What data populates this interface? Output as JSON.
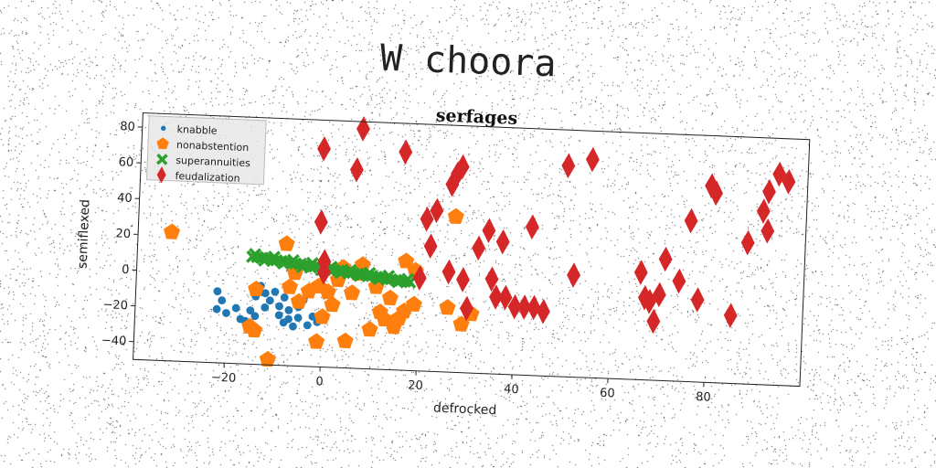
{
  "page": {
    "title": "W choora"
  },
  "chart_data": {
    "type": "scatter",
    "title": "serfages",
    "xlabel": "defrocked",
    "ylabel": "semiflexed",
    "xlim": [
      -39,
      100
    ],
    "ylim": [
      -50,
      88
    ],
    "xticks": [
      -20,
      0,
      20,
      40,
      60,
      80
    ],
    "yticks": [
      -40,
      -20,
      0,
      20,
      40,
      60,
      80
    ],
    "grid": false,
    "legend": "top-left",
    "series": [
      {
        "name": "knabble",
        "color": "#1f77b4",
        "marker": "circle",
        "points": [
          [
            -22,
            -10
          ],
          [
            -21,
            -15
          ],
          [
            -22,
            -20
          ],
          [
            -20,
            -22
          ],
          [
            -18,
            -19
          ],
          [
            -17,
            -25
          ],
          [
            -16,
            -26
          ],
          [
            -15,
            -20
          ],
          [
            -14,
            -12
          ],
          [
            -13,
            -6
          ],
          [
            -12,
            -10
          ],
          [
            -11,
            -14
          ],
          [
            -10,
            -9
          ],
          [
            -9,
            -17
          ],
          [
            -9,
            -22
          ],
          [
            -8,
            -12
          ],
          [
            -8,
            -26
          ],
          [
            -7,
            -19
          ],
          [
            -7,
            -24
          ],
          [
            -6,
            -28
          ],
          [
            -5,
            -23
          ],
          [
            -5,
            -17
          ],
          [
            -4,
            -13
          ],
          [
            -3,
            -27
          ],
          [
            -2,
            -22
          ],
          [
            -1,
            -25
          ],
          [
            -12,
            -18
          ],
          [
            -14,
            -23
          ]
        ]
      },
      {
        "name": "nonabstention",
        "color": "#ff7f0e",
        "marker": "pentagon",
        "points": [
          [
            -32,
            22
          ],
          [
            -14,
            -31
          ],
          [
            -15,
            -29
          ],
          [
            -14,
            -8
          ],
          [
            -11,
            -47
          ],
          [
            -8,
            18
          ],
          [
            -7,
            -6
          ],
          [
            -6,
            2
          ],
          [
            -5,
            -14
          ],
          [
            -3,
            -8
          ],
          [
            -1,
            -5
          ],
          [
            -1,
            -36
          ],
          [
            0,
            -22
          ],
          [
            1,
            -8
          ],
          [
            2,
            -15
          ],
          [
            3,
            -1
          ],
          [
            4,
            6
          ],
          [
            5,
            -35
          ],
          [
            6,
            -8
          ],
          [
            7,
            3
          ],
          [
            8,
            8
          ],
          [
            10,
            -28
          ],
          [
            11,
            -4
          ],
          [
            12,
            -18
          ],
          [
            13,
            -22
          ],
          [
            14,
            -10
          ],
          [
            15,
            -26
          ],
          [
            16,
            -21
          ],
          [
            17,
            -17
          ],
          [
            17,
            11
          ],
          [
            19,
            -13
          ],
          [
            19,
            6
          ],
          [
            26,
            -14
          ],
          [
            27,
            37
          ],
          [
            29,
            -23
          ],
          [
            31,
            -17
          ]
        ]
      },
      {
        "name": "superannuities",
        "color": "#2ca02c",
        "marker": "x",
        "points": [
          [
            -15,
            10
          ],
          [
            -14,
            10
          ],
          [
            -13,
            9.6
          ],
          [
            -12,
            9.3
          ],
          [
            -11,
            9
          ],
          [
            -10,
            8.6
          ],
          [
            -9,
            8.3
          ],
          [
            -8,
            8
          ],
          [
            -7,
            7.6
          ],
          [
            -6,
            7.3
          ],
          [
            -5,
            7
          ],
          [
            -4,
            6.6
          ],
          [
            -3,
            6.3
          ],
          [
            -2,
            6
          ],
          [
            -1,
            5.6
          ],
          [
            0,
            5.3
          ],
          [
            1,
            5
          ],
          [
            2,
            4.6
          ],
          [
            3,
            4.3
          ],
          [
            4,
            4
          ],
          [
            5,
            3.6
          ],
          [
            6,
            3.3
          ],
          [
            7,
            3
          ],
          [
            8,
            2.6
          ],
          [
            9,
            2.3
          ],
          [
            10,
            2
          ],
          [
            11,
            1.6
          ],
          [
            12,
            1.3
          ],
          [
            13,
            1
          ],
          [
            14,
            0.6
          ],
          [
            15,
            0.3
          ],
          [
            16,
            0
          ],
          [
            17,
            -0.3
          ],
          [
            18,
            -0.6
          ],
          [
            -14.5,
            11.5
          ],
          [
            -12.5,
            8.2
          ],
          [
            -10.5,
            10.4
          ],
          [
            -8.5,
            7
          ],
          [
            -6.5,
            9
          ],
          [
            -4.5,
            5.4
          ],
          [
            -2.5,
            7.8
          ],
          [
            -0.5,
            4.2
          ],
          [
            1.5,
            6.2
          ],
          [
            3.5,
            3
          ],
          [
            5.5,
            4.8
          ],
          [
            7.5,
            1.8
          ],
          [
            9.5,
            3.6
          ],
          [
            11.5,
            0.4
          ],
          [
            13.5,
            2.4
          ],
          [
            15.5,
            -0.8
          ],
          [
            17.5,
            1
          ]
        ]
      },
      {
        "name": "feudalization",
        "color": "#d62728",
        "marker": "thin_diamond",
        "points": [
          [
            -1,
            72
          ],
          [
            -1,
            31
          ],
          [
            0,
            9
          ],
          [
            0,
            3
          ],
          [
            6,
            61
          ],
          [
            7,
            84
          ],
          [
            16,
            72
          ],
          [
            20,
            2
          ],
          [
            21,
            35
          ],
          [
            22,
            20
          ],
          [
            23,
            40
          ],
          [
            26,
            6
          ],
          [
            26,
            55
          ],
          [
            27,
            61
          ],
          [
            28,
            65
          ],
          [
            29,
            2
          ],
          [
            30,
            -14
          ],
          [
            32,
            20
          ],
          [
            34,
            30
          ],
          [
            35,
            3
          ],
          [
            36,
            -7
          ],
          [
            37,
            24
          ],
          [
            38,
            -7
          ],
          [
            40,
            -12
          ],
          [
            42,
            -12
          ],
          [
            43,
            33
          ],
          [
            44,
            -12
          ],
          [
            46,
            -14
          ],
          [
            50,
            68
          ],
          [
            52,
            7
          ],
          [
            55,
            72
          ],
          [
            66,
            10
          ],
          [
            67,
            -4
          ],
          [
            68,
            -6
          ],
          [
            69,
            -17
          ],
          [
            70,
            -2
          ],
          [
            71,
            18
          ],
          [
            74,
            6
          ],
          [
            76,
            40
          ],
          [
            78,
            -4
          ],
          [
            80,
            60
          ],
          [
            81,
            56
          ],
          [
            85,
            -12
          ],
          [
            88,
            29
          ],
          [
            91,
            47
          ],
          [
            92,
            36
          ],
          [
            92,
            58
          ],
          [
            94,
            68
          ],
          [
            96,
            64
          ]
        ]
      }
    ]
  }
}
